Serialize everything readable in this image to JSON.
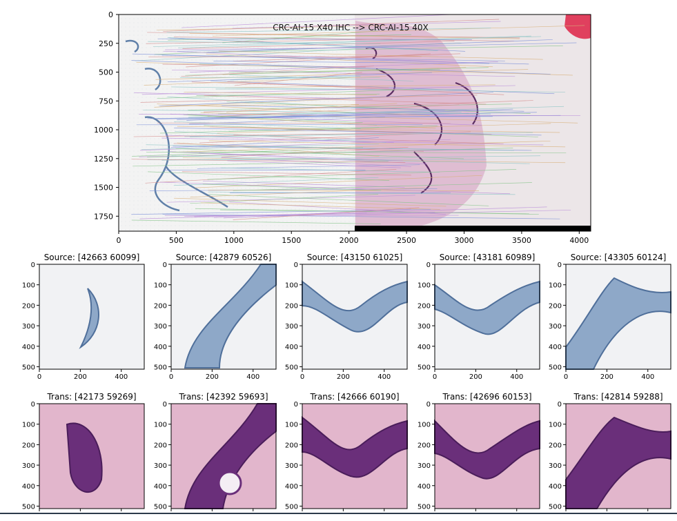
{
  "main_plot": {
    "title": "CRC-AI-15 X40 IHC --> CRC-AI-15 40X",
    "x_ticks": [
      "0",
      "500",
      "1000",
      "1500",
      "2000",
      "2500",
      "3000",
      "3500",
      "4000"
    ],
    "y_ticks": [
      "0",
      "250",
      "500",
      "750",
      "1000",
      "1250",
      "1500",
      "1750"
    ]
  },
  "thumb_axes": {
    "x_ticks": [
      "0",
      "200",
      "400"
    ],
    "y_ticks": [
      "0",
      "100",
      "200",
      "300",
      "400",
      "500"
    ]
  },
  "source_row": [
    {
      "title": "Source:  [42663 60099]"
    },
    {
      "title": "Source:  [42879 60526]"
    },
    {
      "title": "Source:  [43150 61025]"
    },
    {
      "title": "Source:  [43181 60989]"
    },
    {
      "title": "Source:  [43305 60124]"
    }
  ],
  "trans_row": [
    {
      "title": "Trans:  [42173 59269]"
    },
    {
      "title": "Trans:  [42392 59693]"
    },
    {
      "title": "Trans:  [42666 60190]"
    },
    {
      "title": "Trans:  [42696 60153]"
    },
    {
      "title": "Trans:  [42814 59288]"
    }
  ],
  "colors": {
    "ihc_background": "#f1f2f3",
    "ihc_stain": "#6f8fb5",
    "he_background": "#e8c8d8",
    "he_stain": "#5a2a6a",
    "black_bar": "#000000"
  }
}
